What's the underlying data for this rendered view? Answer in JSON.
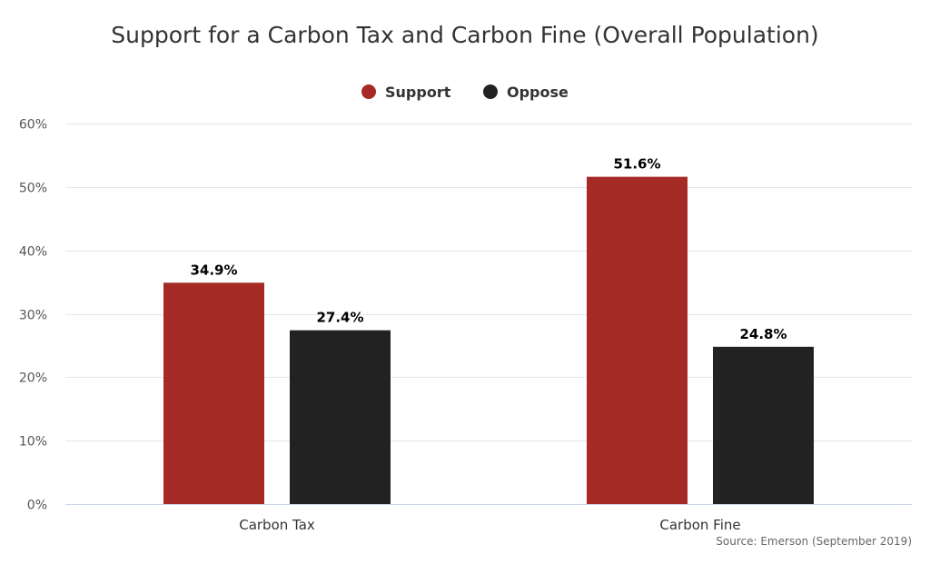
{
  "chart_data": {
    "type": "bar",
    "title": "Support for a Carbon Tax and Carbon Fine (Overall Population)",
    "categories": [
      "Carbon Tax",
      "Carbon Fine"
    ],
    "series": [
      {
        "name": "Support",
        "color": "#a52a25",
        "values": [
          34.9,
          51.6
        ],
        "labels": [
          "34.9%",
          "51.6%"
        ]
      },
      {
        "name": "Oppose",
        "color": "#222222",
        "values": [
          27.4,
          24.8
        ],
        "labels": [
          "27.4%",
          "24.8%"
        ]
      }
    ],
    "ylim": [
      0,
      60
    ],
    "yticks": [
      0,
      10,
      20,
      30,
      40,
      50,
      60
    ],
    "ytick_labels": [
      "0%",
      "10%",
      "20%",
      "30%",
      "40%",
      "50%",
      "60%"
    ],
    "xlabel": "",
    "ylabel": "",
    "grid": true,
    "legend_position": "top-center",
    "source": "Source: Emerson (September 2019)"
  }
}
